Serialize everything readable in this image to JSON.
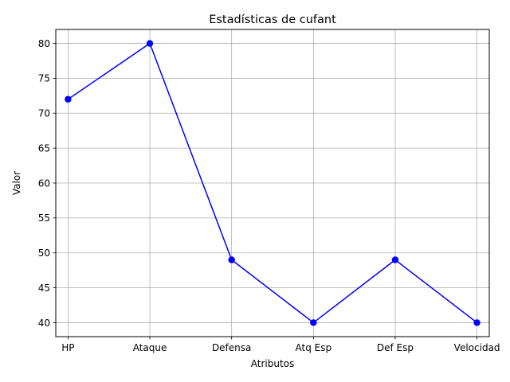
{
  "chart_data": {
    "type": "line",
    "title": "Estadísticas de cufant",
    "xlabel": "Atributos",
    "ylabel": "Valor",
    "categories": [
      "HP",
      "Ataque",
      "Defensa",
      "Atq Esp",
      "Def Esp",
      "Velocidad"
    ],
    "series": [
      {
        "values": [
          72,
          80,
          49,
          40,
          49,
          40
        ],
        "color": "#0000ff",
        "marker": "circle"
      }
    ],
    "ylim": [
      38,
      82
    ],
    "yticks": [
      40,
      45,
      50,
      55,
      60,
      65,
      70,
      75,
      80
    ],
    "grid": true,
    "grid_color": "#b0b0b0",
    "legend": "none"
  }
}
